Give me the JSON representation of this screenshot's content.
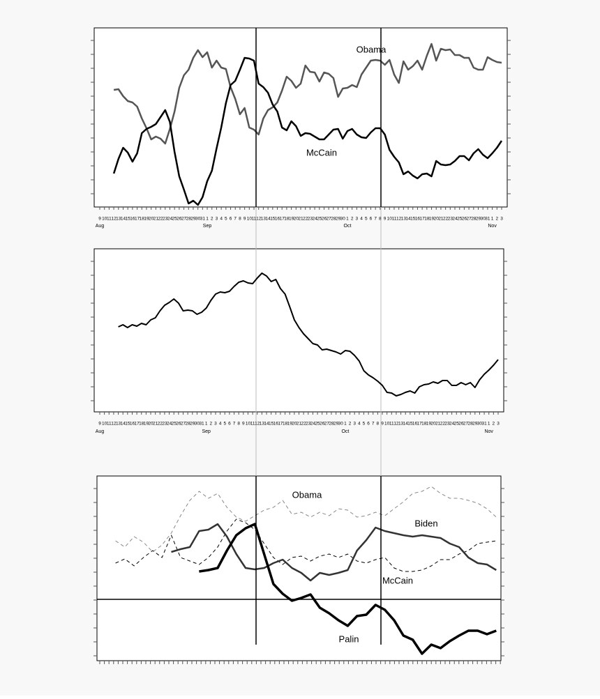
{
  "chart_data": [
    {
      "type": "line",
      "categories": [
        "9",
        "10",
        "11",
        "12",
        "13",
        "14",
        "15",
        "16",
        "17",
        "18",
        "19",
        "20",
        "21",
        "22",
        "23",
        "24",
        "25",
        "26",
        "27",
        "28",
        "29",
        "30",
        "31",
        "1",
        "2",
        "3",
        "4",
        "5",
        "6",
        "7",
        "8",
        "9",
        "10",
        "11",
        "12",
        "13",
        "14",
        "15",
        "16",
        "17",
        "18",
        "19",
        "20",
        "21",
        "22",
        "23",
        "24",
        "25",
        "26",
        "27",
        "28",
        "29",
        "30",
        "1",
        "2",
        "3",
        "4",
        "5",
        "6",
        "7",
        "8",
        "9",
        "10",
        "11",
        "12",
        "13",
        "14",
        "15",
        "16",
        "17",
        "18",
        "19",
        "20",
        "21",
        "22",
        "23",
        "24",
        "25",
        "26",
        "27",
        "28",
        "29",
        "30",
        "31",
        "1",
        "2",
        "3"
      ],
      "month_ticks": [
        {
          "value": 0,
          "label": "Aug"
        },
        {
          "value": 23,
          "label": "Sep"
        },
        {
          "value": 53,
          "label": "Oct"
        },
        {
          "value": 84,
          "label": "Nov"
        }
      ],
      "ylim": [
        0,
        257
      ],
      "series": [
        {
          "name": "Obama",
          "color": "#555555",
          "values": [
            null,
            null,
            null,
            168,
            169,
            159,
            152,
            150,
            144,
            127,
            113,
            97,
            101,
            98,
            91,
            112,
            137,
            171,
            189,
            197,
            214,
            225,
            215,
            222,
            200,
            210,
            200,
            198,
            172,
            155,
            133,
            142,
            114,
            111,
            104,
            127,
            139,
            143,
            150,
            167,
            187,
            181,
            171,
            177,
            203,
            194,
            193,
            180,
            193,
            191,
            185,
            158,
            170,
            171,
            175,
            172,
            190,
            200,
            210,
            211,
            210,
            204,
            211,
            190,
            178,
            209,
            197,
            202,
            210,
            197,
            217,
            234,
            210,
            227,
            225,
            226,
            218,
            218,
            214,
            214,
            200,
            197,
            197,
            215,
            211,
            208,
            207
          ]
        },
        {
          "name": "McCain",
          "color": "#000000",
          "values": [
            null,
            null,
            null,
            48,
            69,
            85,
            78,
            65,
            77,
            106,
            112,
            115,
            119,
            129,
            139,
            122,
            79,
            44,
            25,
            5,
            9,
            3,
            14,
            37,
            52,
            84,
            114,
            149,
            175,
            181,
            197,
            214,
            213,
            210,
            177,
            172,
            164,
            147,
            137,
            114,
            110,
            123,
            116,
            102,
            106,
            105,
            101,
            97,
            97,
            104,
            111,
            112,
            98,
            109,
            112,
            104,
            100,
            99,
            107,
            113,
            113,
            104,
            82,
            72,
            64,
            47,
            51,
            45,
            41,
            47,
            48,
            44,
            66,
            61,
            60,
            61,
            66,
            73,
            73,
            67,
            77,
            83,
            75,
            70,
            77,
            85,
            95
          ]
        }
      ]
    },
    {
      "type": "line",
      "categories": [
        "9",
        "10",
        "11",
        "12",
        "13",
        "14",
        "15",
        "16",
        "17",
        "18",
        "19",
        "20",
        "21",
        "22",
        "23",
        "24",
        "25",
        "26",
        "27",
        "28",
        "29",
        "30",
        "31",
        "1",
        "2",
        "3",
        "4",
        "5",
        "6",
        "7",
        "8",
        "9",
        "10",
        "11",
        "12",
        "13",
        "14",
        "15",
        "16",
        "17",
        "18",
        "19",
        "20",
        "21",
        "22",
        "23",
        "24",
        "25",
        "26",
        "27",
        "28",
        "29",
        "30",
        "1",
        "2",
        "3",
        "4",
        "5",
        "6",
        "7",
        "8",
        "9",
        "10",
        "11",
        "12",
        "13",
        "14",
        "15",
        "16",
        "17",
        "18",
        "19",
        "20",
        "21",
        "22",
        "23",
        "24",
        "25",
        "26",
        "27",
        "28",
        "29",
        "30",
        "31",
        "1",
        "2",
        "3"
      ],
      "month_ticks": [
        {
          "value": 0,
          "label": "Aug"
        },
        {
          "value": 23,
          "label": "Sep"
        },
        {
          "value": 53,
          "label": "Oct"
        },
        {
          "value": 84,
          "label": "Nov"
        }
      ],
      "ylim": [
        0,
        234
      ],
      "series": [
        {
          "color": "#000000",
          "values": [
            null,
            null,
            null,
            null,
            122,
            125,
            121,
            125,
            123,
            127,
            125,
            132,
            135,
            145,
            153,
            157,
            162,
            156,
            145,
            146,
            145,
            140,
            143,
            149,
            160,
            169,
            172,
            171,
            173,
            180,
            186,
            188,
            185,
            184,
            192,
            199,
            195,
            187,
            190,
            177,
            169,
            151,
            132,
            121,
            112,
            105,
            98,
            96,
            89,
            90,
            88,
            86,
            83,
            88,
            87,
            81,
            73,
            59,
            53,
            49,
            44,
            38,
            28,
            27,
            23,
            25,
            28,
            30,
            27,
            36,
            39,
            40,
            43,
            41,
            45,
            45,
            38,
            38,
            42,
            39,
            42,
            35,
            46,
            54,
            60,
            67,
            75
          ]
        }
      ]
    },
    {
      "type": "line",
      "x": [
        4,
        6,
        8,
        10,
        12,
        14,
        16,
        18,
        20,
        22,
        24,
        26,
        28,
        30,
        32,
        34,
        36,
        38,
        40,
        42,
        44,
        46,
        48,
        50,
        52,
        54,
        56,
        58,
        60,
        62,
        64,
        66,
        68,
        70,
        72,
        74,
        76,
        78,
        80,
        82,
        84,
        86
      ],
      "xlim": [
        0,
        87
      ],
      "ylim": [
        -88,
        177
      ],
      "series": [
        {
          "name": "Obama",
          "color": "#888888",
          "dashed": true,
          "values": [
            84,
            75,
            90,
            82,
            68,
            78,
            95,
            120,
            142,
            155,
            145,
            152,
            132,
            118,
            112,
            120,
            128,
            132,
            142,
            122,
            125,
            118,
            125,
            120,
            130,
            128,
            118,
            120,
            125,
            120,
            130,
            140,
            152,
            155,
            162,
            152,
            145,
            145,
            142,
            138,
            130,
            118
          ]
        },
        {
          "name": "McCain",
          "color": "#000000",
          "dashed": true,
          "values": [
            52,
            58,
            48,
            60,
            70,
            60,
            92,
            60,
            55,
            50,
            60,
            75,
            98,
            115,
            110,
            100,
            80,
            60,
            50,
            60,
            62,
            55,
            62,
            65,
            60,
            65,
            55,
            52,
            57,
            60,
            45,
            40,
            40,
            42,
            48,
            57,
            57,
            65,
            70,
            80,
            82,
            84
          ]
        },
        {
          "name": "Biden",
          "color": "#333333",
          "values": [
            null,
            null,
            null,
            null,
            null,
            null,
            68,
            72,
            75,
            98,
            100,
            108,
            90,
            65,
            45,
            43,
            45,
            52,
            57,
            45,
            38,
            27,
            38,
            35,
            38,
            42,
            70,
            85,
            103,
            98,
            95,
            92,
            90,
            92,
            90,
            88,
            80,
            75,
            60,
            52,
            50,
            42
          ]
        },
        {
          "name": "Palin",
          "color": "#000000",
          "values": [
            null,
            null,
            null,
            null,
            null,
            null,
            null,
            null,
            null,
            40,
            42,
            45,
            70,
            92,
            102,
            108,
            65,
            22,
            8,
            -2,
            2,
            7,
            -12,
            -20,
            -30,
            -38,
            -24,
            -22,
            -8,
            -15,
            -30,
            -52,
            -58,
            -78,
            -65,
            -70,
            -60,
            -52,
            -45,
            -45,
            -50,
            -45
          ]
        }
      ]
    }
  ]
}
